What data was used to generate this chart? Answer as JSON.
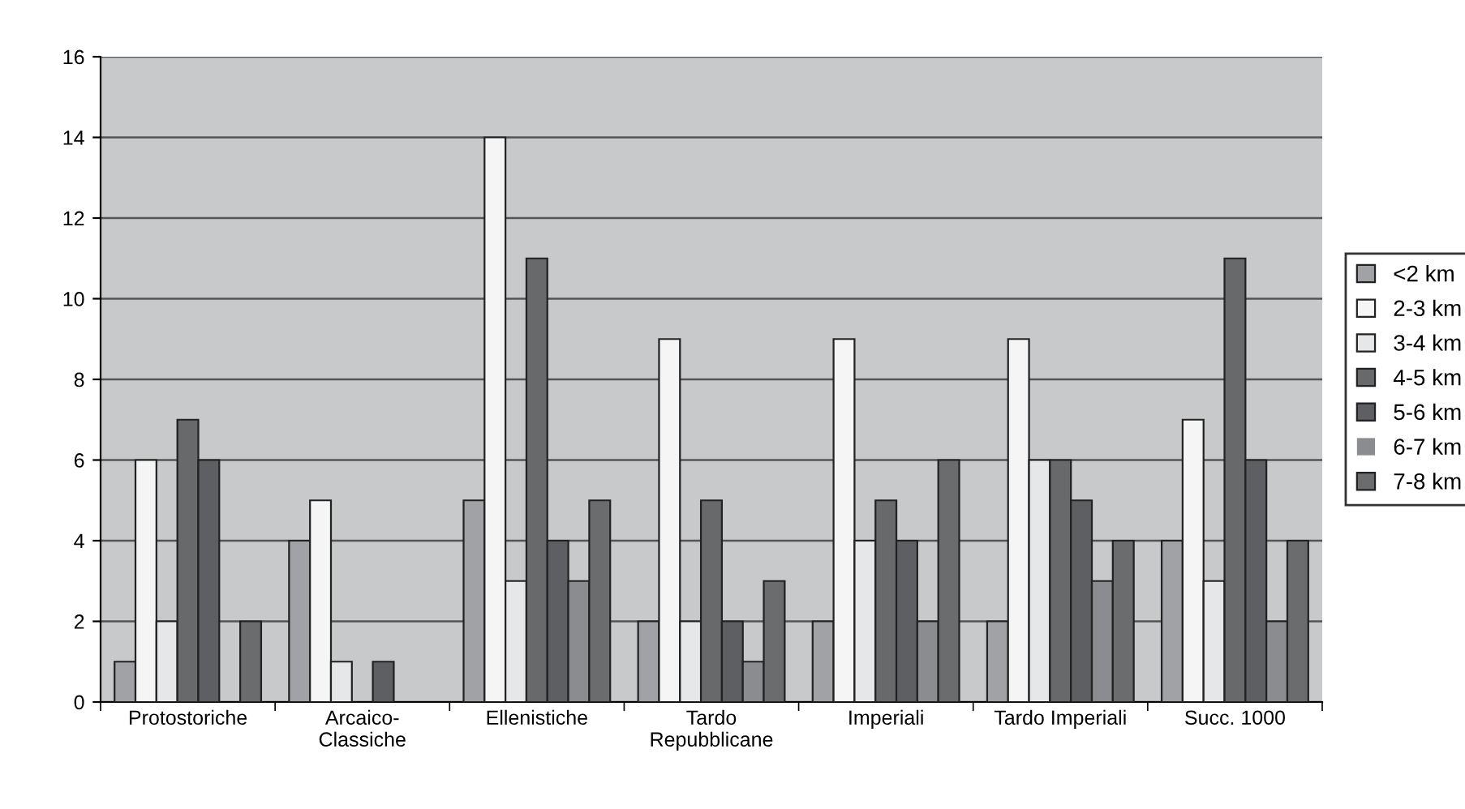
{
  "chart_data": {
    "type": "bar",
    "categories": [
      "Protostoriche",
      "Arcaico-\nClassiche",
      "Ellenistiche",
      "Tardo\nRepubblicane",
      "Imperiali",
      "Tardo Imperiali",
      "Succ. 1000"
    ],
    "series": [
      {
        "name": "<2 km",
        "color": "#a0a2a6",
        "values": [
          1,
          4,
          5,
          2,
          2,
          2,
          4
        ]
      },
      {
        "name": "2-3 km",
        "color": "#f5f5f5",
        "values": [
          6,
          5,
          14,
          9,
          9,
          9,
          7
        ]
      },
      {
        "name": "3-4 km",
        "color": "#e6e7e9",
        "values": [
          2,
          1,
          3,
          2,
          4,
          6,
          3
        ]
      },
      {
        "name": "4-5 km",
        "color": "#68696b",
        "values": [
          7,
          0,
          11,
          5,
          5,
          6,
          11
        ]
      },
      {
        "name": "5-6 km",
        "color": "#5e5f62",
        "values": [
          6,
          1,
          4,
          2,
          4,
          5,
          6
        ]
      },
      {
        "name": "6-7 km",
        "color": "#8b8c8f",
        "values": [
          0,
          0,
          3,
          1,
          2,
          3,
          2
        ]
      },
      {
        "name": "7-8 km",
        "color": "#6b6c6e",
        "values": [
          2,
          0,
          5,
          3,
          6,
          4,
          4
        ]
      }
    ],
    "ylim": [
      0,
      16
    ],
    "yticks": [
      0,
      2,
      4,
      6,
      8,
      10,
      12,
      14,
      16
    ],
    "grid": "y",
    "legend": "right"
  }
}
